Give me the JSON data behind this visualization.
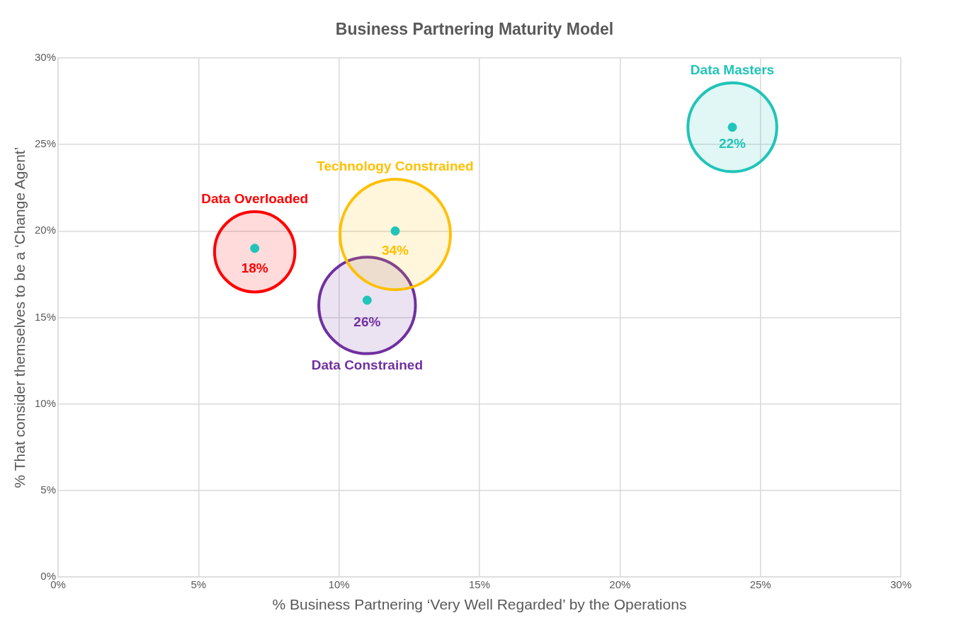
{
  "chart_data": {
    "type": "bubble",
    "title": "Business Partnering Maturity Model",
    "xlabel": "% Business Partnering ‘Very Well Regarded’ by the Operations",
    "ylabel": "% That consider themselves to be a ‘Change Agent’",
    "xlim": [
      0,
      30
    ],
    "ylim": [
      0,
      30
    ],
    "xticks": [
      {
        "value": 0,
        "label": "0%"
      },
      {
        "value": 5,
        "label": "5%"
      },
      {
        "value": 10,
        "label": "10%"
      },
      {
        "value": 15,
        "label": "15%"
      },
      {
        "value": 20,
        "label": "20%"
      },
      {
        "value": 25,
        "label": "25%"
      },
      {
        "value": 30,
        "label": "30%"
      }
    ],
    "yticks": [
      {
        "value": 0,
        "label": "0%"
      },
      {
        "value": 5,
        "label": "5%"
      },
      {
        "value": 10,
        "label": "10%"
      },
      {
        "value": 15,
        "label": "15%"
      },
      {
        "value": 20,
        "label": "20%"
      },
      {
        "value": 25,
        "label": "25%"
      },
      {
        "value": 30,
        "label": "30%"
      }
    ],
    "grid": true,
    "marker": "circle",
    "series": [
      {
        "name": "Data Overloaded",
        "color": "#ff0000",
        "x": [
          7
        ],
        "values": [
          18.8
        ],
        "sizes": [
          18
        ],
        "value_labels": [
          "18%"
        ]
      },
      {
        "name": "Technology Constrained",
        "color": "#ffc000",
        "x": [
          12
        ],
        "values": [
          19.8
        ],
        "sizes": [
          34
        ],
        "value_labels": [
          "34%"
        ]
      },
      {
        "name": "Data Constrained",
        "color": "#7030a0",
        "x": [
          11
        ],
        "values": [
          15.7
        ],
        "sizes": [
          26
        ],
        "value_labels": [
          "26%"
        ]
      },
      {
        "name": "Data Masters",
        "color": "#20c4b8",
        "x": [
          24
        ],
        "values": [
          26
        ],
        "sizes": [
          22
        ],
        "value_labels": [
          "22%"
        ]
      },
      {
        "type": "scatter",
        "color": "#20c4b8",
        "x": [
          7,
          12,
          11,
          24
        ],
        "values": [
          19,
          20,
          16,
          26
        ]
      }
    ]
  }
}
